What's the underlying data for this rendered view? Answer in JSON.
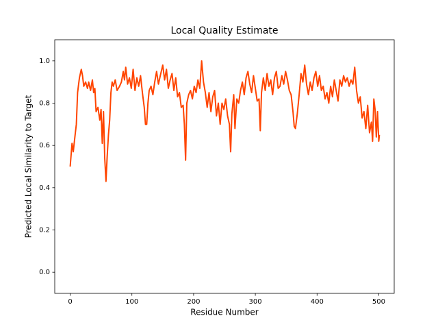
{
  "chart_data": {
    "type": "line",
    "title": "Local Quality Estimate",
    "x_label": "Residue Number",
    "y_label": "Predicted Local Similarity to Target",
    "x": [
      0,
      3,
      5,
      8,
      10,
      12,
      15,
      18,
      20,
      22,
      25,
      28,
      30,
      33,
      36,
      38,
      40,
      42,
      45,
      48,
      50,
      52,
      54,
      56,
      58,
      60,
      62,
      64,
      66,
      68,
      70,
      73,
      76,
      80,
      83,
      86,
      88,
      90,
      93,
      96,
      99,
      102,
      105,
      108,
      111,
      114,
      117,
      120,
      122,
      124,
      126,
      128,
      131,
      134,
      137,
      140,
      143,
      146,
      150,
      153,
      156,
      159,
      162,
      165,
      168,
      171,
      174,
      177,
      180,
      183,
      185,
      187,
      189,
      192,
      195,
      198,
      201,
      204,
      207,
      210,
      213,
      216,
      219,
      222,
      225,
      228,
      231,
      234,
      237,
      240,
      243,
      246,
      249,
      252,
      255,
      258,
      260,
      262,
      265,
      267,
      270,
      273,
      276,
      279,
      282,
      285,
      288,
      291,
      294,
      297,
      300,
      303,
      306,
      308,
      310,
      313,
      316,
      319,
      322,
      325,
      328,
      331,
      334,
      337,
      340,
      343,
      346,
      349,
      352,
      355,
      358,
      361,
      363,
      365,
      368,
      371,
      374,
      377,
      380,
      383,
      386,
      389,
      392,
      395,
      398,
      401,
      404,
      407,
      410,
      413,
      416,
      419,
      422,
      425,
      428,
      431,
      434,
      437,
      440,
      443,
      446,
      449,
      452,
      455,
      458,
      461,
      464,
      467,
      470,
      473,
      476,
      479,
      482,
      485,
      488,
      490,
      492,
      494,
      496,
      498,
      500,
      501
    ],
    "series": [
      {
        "color": "#ff4500",
        "values": [
          0.5,
          0.61,
          0.57,
          0.65,
          0.7,
          0.85,
          0.92,
          0.96,
          0.93,
          0.88,
          0.9,
          0.87,
          0.9,
          0.86,
          0.91,
          0.85,
          0.87,
          0.76,
          0.78,
          0.72,
          0.77,
          0.61,
          0.76,
          0.54,
          0.43,
          0.55,
          0.65,
          0.72,
          0.85,
          0.9,
          0.88,
          0.91,
          0.86,
          0.88,
          0.9,
          0.95,
          0.91,
          0.97,
          0.89,
          0.92,
          0.87,
          0.96,
          0.86,
          0.92,
          0.88,
          0.93,
          0.85,
          0.78,
          0.7,
          0.7,
          0.8,
          0.86,
          0.88,
          0.84,
          0.9,
          0.95,
          0.89,
          0.93,
          0.98,
          0.91,
          0.96,
          0.87,
          0.91,
          0.94,
          0.86,
          0.92,
          0.83,
          0.85,
          0.78,
          0.79,
          0.7,
          0.53,
          0.8,
          0.84,
          0.86,
          0.82,
          0.88,
          0.85,
          0.91,
          0.87,
          1.0,
          0.9,
          0.85,
          0.78,
          0.85,
          0.76,
          0.83,
          0.86,
          0.74,
          0.8,
          0.7,
          0.8,
          0.77,
          0.82,
          0.74,
          0.7,
          0.57,
          0.75,
          0.84,
          0.68,
          0.82,
          0.8,
          0.86,
          0.9,
          0.84,
          0.92,
          0.95,
          0.89,
          0.85,
          0.93,
          0.87,
          0.81,
          0.82,
          0.67,
          0.85,
          0.92,
          0.86,
          0.94,
          0.88,
          0.91,
          0.84,
          0.92,
          0.95,
          0.87,
          0.88,
          0.93,
          0.89,
          0.95,
          0.91,
          0.86,
          0.84,
          0.76,
          0.69,
          0.68,
          0.75,
          0.84,
          0.94,
          0.9,
          0.98,
          0.89,
          0.84,
          0.9,
          0.86,
          0.92,
          0.95,
          0.88,
          0.93,
          0.86,
          0.88,
          0.82,
          0.85,
          0.8,
          0.88,
          0.83,
          0.91,
          0.86,
          0.81,
          0.91,
          0.88,
          0.93,
          0.9,
          0.92,
          0.88,
          0.91,
          0.89,
          0.97,
          0.86,
          0.8,
          0.83,
          0.73,
          0.76,
          0.68,
          0.79,
          0.66,
          0.71,
          0.62,
          0.82,
          0.77,
          0.64,
          0.76,
          0.62,
          0.65
        ]
      }
    ],
    "xlim": [
      -25,
      525
    ],
    "xticks": [
      0,
      100,
      200,
      300,
      400,
      500
    ],
    "ylim": [
      -0.1,
      1.1
    ],
    "yticks": [
      {
        "value": 0,
        "label": "0.0"
      },
      0.2,
      0.4,
      0.6,
      0.8,
      {
        "value": 1,
        "label": "1.0"
      }
    ],
    "grid": false
  }
}
